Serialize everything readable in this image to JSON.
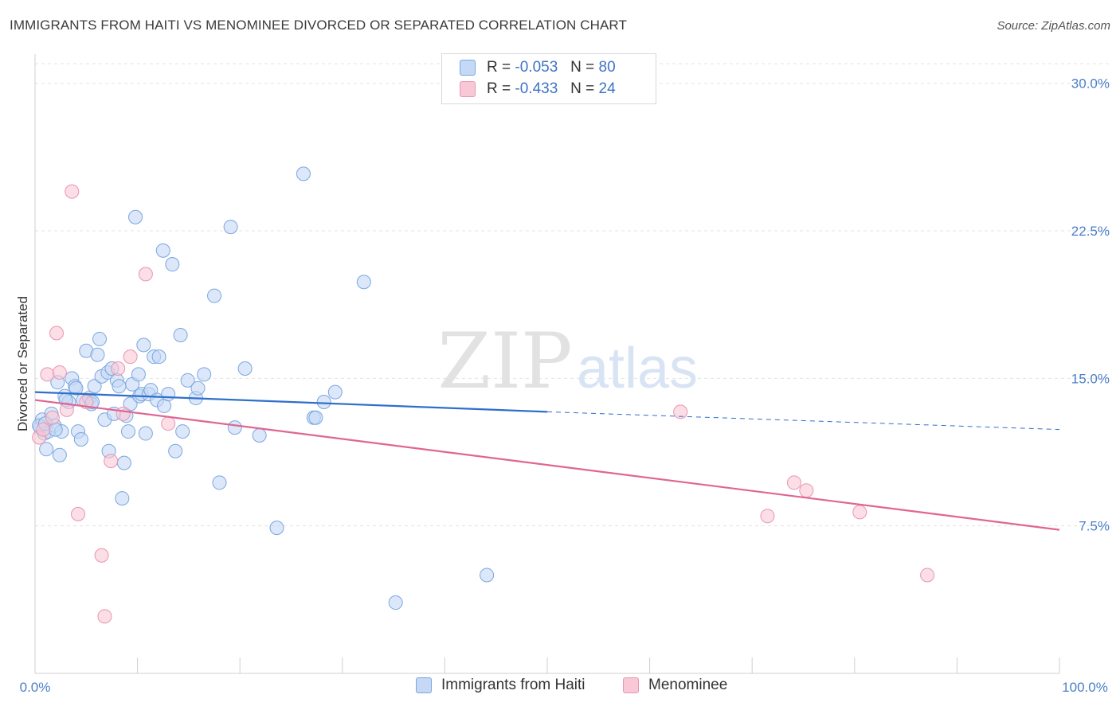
{
  "title": "IMMIGRANTS FROM HAITI VS MENOMINEE DIVORCED OR SEPARATED CORRELATION CHART",
  "source": "Source: ZipAtlas.com",
  "watermark": {
    "zip": "ZIP",
    "atlas": "atlas"
  },
  "colors": {
    "haiti_fill": "#c5d8f5",
    "haiti_stroke": "#7aa6e0",
    "haiti_line": "#2f6fcc",
    "menominee_fill": "#f8c8d6",
    "menominee_stroke": "#e995b0",
    "menominee_line": "#e06592"
  },
  "legend": {
    "rows": [
      {
        "r_label": "R =",
        "r_value": "-0.053",
        "n_label": "N =",
        "n_value": "80"
      },
      {
        "r_label": "R =",
        "r_value": "-0.433",
        "n_label": "N =",
        "n_value": "24"
      }
    ]
  },
  "bottom_legend": {
    "haiti": "Immigrants from Haiti",
    "menominee": "Menominee"
  },
  "chart_data": {
    "type": "scatter",
    "title": "IMMIGRANTS FROM HAITI VS MENOMINEE DIVORCED OR SEPARATED CORRELATION CHART",
    "xlabel": "",
    "ylabel": "Divorced or Separated",
    "xlim": [
      0,
      100
    ],
    "ylim": [
      0,
      31
    ],
    "x_tick_labels": [
      "0.0%",
      "100.0%"
    ],
    "y_ticks": [
      7.5,
      15.0,
      22.5,
      30.0
    ],
    "y_tick_labels": [
      "7.5%",
      "15.0%",
      "22.5%",
      "30.0%"
    ],
    "grid": "horizontal dashed",
    "legend_position": "top-center",
    "series": [
      {
        "name": "Immigrants from Haiti",
        "r": -0.053,
        "n": 80,
        "trend": {
          "x": [
            0,
            50
          ],
          "y": [
            14.3,
            13.3
          ]
        },
        "trend_extended": {
          "x": [
            50,
            100
          ],
          "y": [
            13.3,
            12.4
          ]
        },
        "points": [
          [
            0.5,
            12.5
          ],
          [
            0.7,
            12.9
          ],
          [
            0.9,
            12.2
          ],
          [
            1.1,
            11.4
          ],
          [
            1.3,
            12.3
          ],
          [
            1.6,
            13.2
          ],
          [
            1.9,
            12.6
          ],
          [
            2.2,
            14.8
          ],
          [
            2.4,
            11.1
          ],
          [
            2.6,
            12.3
          ],
          [
            2.9,
            14.1
          ],
          [
            3.3,
            13.8
          ],
          [
            3.6,
            15.0
          ],
          [
            3.9,
            14.6
          ],
          [
            4.2,
            12.3
          ],
          [
            4.5,
            11.9
          ],
          [
            4.7,
            13.9
          ],
          [
            5.0,
            16.4
          ],
          [
            5.3,
            14.0
          ],
          [
            5.5,
            13.7
          ],
          [
            5.8,
            14.6
          ],
          [
            6.1,
            16.2
          ],
          [
            6.3,
            17.0
          ],
          [
            6.5,
            15.1
          ],
          [
            6.8,
            12.9
          ],
          [
            7.1,
            15.3
          ],
          [
            7.2,
            11.3
          ],
          [
            7.5,
            15.5
          ],
          [
            7.7,
            13.2
          ],
          [
            8.0,
            14.9
          ],
          [
            8.2,
            14.6
          ],
          [
            8.5,
            8.9
          ],
          [
            8.7,
            10.7
          ],
          [
            8.9,
            13.1
          ],
          [
            9.1,
            12.3
          ],
          [
            9.3,
            13.7
          ],
          [
            9.5,
            14.7
          ],
          [
            9.8,
            23.2
          ],
          [
            10.1,
            15.2
          ],
          [
            10.2,
            14.1
          ],
          [
            10.4,
            14.2
          ],
          [
            10.6,
            16.7
          ],
          [
            10.8,
            12.2
          ],
          [
            11.1,
            14.2
          ],
          [
            11.3,
            14.4
          ],
          [
            11.6,
            16.1
          ],
          [
            11.9,
            13.9
          ],
          [
            12.1,
            16.1
          ],
          [
            12.5,
            21.5
          ],
          [
            12.6,
            13.6
          ],
          [
            13.0,
            14.2
          ],
          [
            13.4,
            20.8
          ],
          [
            13.7,
            11.3
          ],
          [
            14.2,
            17.2
          ],
          [
            14.4,
            12.3
          ],
          [
            14.9,
            14.9
          ],
          [
            15.7,
            14.0
          ],
          [
            15.9,
            14.5
          ],
          [
            16.5,
            15.2
          ],
          [
            17.5,
            19.2
          ],
          [
            18.0,
            9.7
          ],
          [
            19.1,
            22.7
          ],
          [
            19.5,
            12.5
          ],
          [
            20.5,
            15.5
          ],
          [
            21.9,
            12.1
          ],
          [
            23.6,
            7.4
          ],
          [
            26.2,
            25.4
          ],
          [
            27.2,
            13.0
          ],
          [
            27.4,
            13.0
          ],
          [
            28.2,
            13.8
          ],
          [
            29.3,
            14.3
          ],
          [
            32.1,
            19.9
          ],
          [
            35.2,
            3.6
          ],
          [
            44.1,
            5.0
          ],
          [
            0.4,
            12.6
          ],
          [
            1.0,
            12.7
          ],
          [
            2.0,
            12.4
          ],
          [
            3.0,
            13.9
          ],
          [
            4.0,
            14.5
          ],
          [
            5.6,
            13.8
          ]
        ]
      },
      {
        "name": "Menominee",
        "r": -0.433,
        "n": 24,
        "trend": {
          "x": [
            0,
            100
          ],
          "y": [
            13.9,
            7.3
          ]
        },
        "points": [
          [
            0.4,
            12.0
          ],
          [
            0.8,
            12.4
          ],
          [
            1.2,
            15.2
          ],
          [
            1.7,
            13.0
          ],
          [
            2.1,
            17.3
          ],
          [
            2.4,
            15.3
          ],
          [
            3.1,
            13.4
          ],
          [
            3.6,
            24.5
          ],
          [
            4.2,
            8.1
          ],
          [
            5.0,
            13.8
          ],
          [
            6.5,
            6.0
          ],
          [
            6.8,
            2.9
          ],
          [
            7.4,
            10.8
          ],
          [
            8.1,
            15.5
          ],
          [
            8.6,
            13.2
          ],
          [
            9.3,
            16.1
          ],
          [
            10.8,
            20.3
          ],
          [
            13.0,
            12.7
          ],
          [
            63.0,
            13.3
          ],
          [
            71.5,
            8.0
          ],
          [
            74.1,
            9.7
          ],
          [
            75.3,
            9.3
          ],
          [
            80.5,
            8.2
          ],
          [
            87.1,
            5.0
          ]
        ]
      }
    ]
  }
}
